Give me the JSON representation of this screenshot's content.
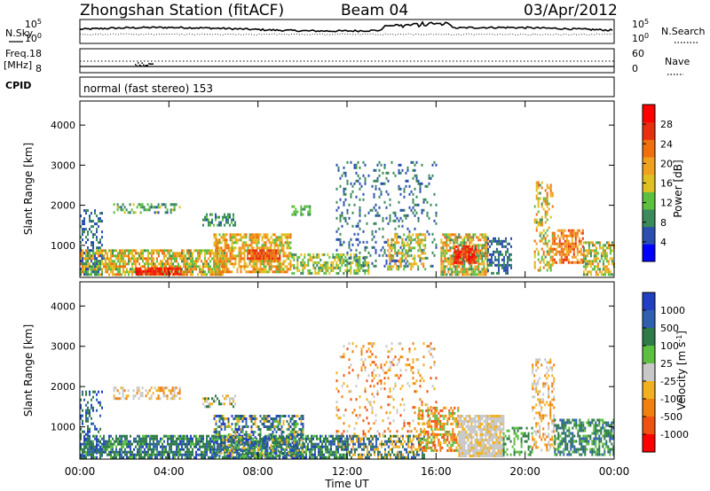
{
  "header": {
    "title": "Zhongshan Station (fitACF)",
    "beam": "Beam 04",
    "date": "03/Apr/2012"
  },
  "strip_labels": {
    "nsky": "N.Sky",
    "nsearch": "N.Search",
    "freq_line1": "Freq.",
    "freq_line2": "[MHz]",
    "nave": "Nave",
    "cpid": "CPID",
    "cpid_value": "normal (fast stereo) 153",
    "noise_ticks_top": "10^5",
    "noise_ticks_bottom": "10^0",
    "noise_ticks_top_right": "10^5",
    "noise_ticks_bottom_right": "10^0",
    "freq_tick_top": "18",
    "freq_tick_bottom": "8",
    "nave_tick_top": "60",
    "nave_tick_bottom": "0"
  },
  "colors": {
    "frame": "#000000",
    "power_scale": [
      "#0000ff",
      "#2a4fb0",
      "#3b8a5a",
      "#5cbf3f",
      "#e0c020",
      "#f0a020",
      "#f07010",
      "#e83010",
      "#ff0000"
    ],
    "velocity_scale": [
      "#2040c0",
      "#2f60b0",
      "#2e7a48",
      "#5cbf3f",
      "#c8c8c8",
      "#f0b020",
      "#f08010",
      "#f05010",
      "#ff0000"
    ]
  },
  "chart_data": [
    {
      "type": "heatmap",
      "name": "power",
      "ylabel": "Slant Range [km]",
      "ylim": [
        200,
        4600
      ],
      "yticks": [
        "1000",
        "2000",
        "3000",
        "4000"
      ],
      "colorbar_label": "Power [dB]",
      "colorbar_ticks": [
        "28",
        "24",
        "20",
        "16",
        "12",
        "8",
        "4"
      ],
      "colorbar_range": [
        0,
        32
      ]
    },
    {
      "type": "heatmap",
      "name": "velocity",
      "ylabel": "Slant Range [km]",
      "ylim": [
        200,
        4600
      ],
      "yticks": [
        "1000",
        "2000",
        "3000",
        "4000"
      ],
      "colorbar_label": "Velocity [m s^-1]",
      "colorbar_ticks": [
        "1000",
        "500",
        "100",
        "25",
        "-25",
        "-100",
        "-500",
        "-1000"
      ]
    }
  ],
  "xaxis": {
    "label": "Time UT",
    "ticks": [
      "00:00",
      "04:00",
      "08:00",
      "12:00",
      "16:00",
      "20:00",
      "00:00"
    ]
  }
}
